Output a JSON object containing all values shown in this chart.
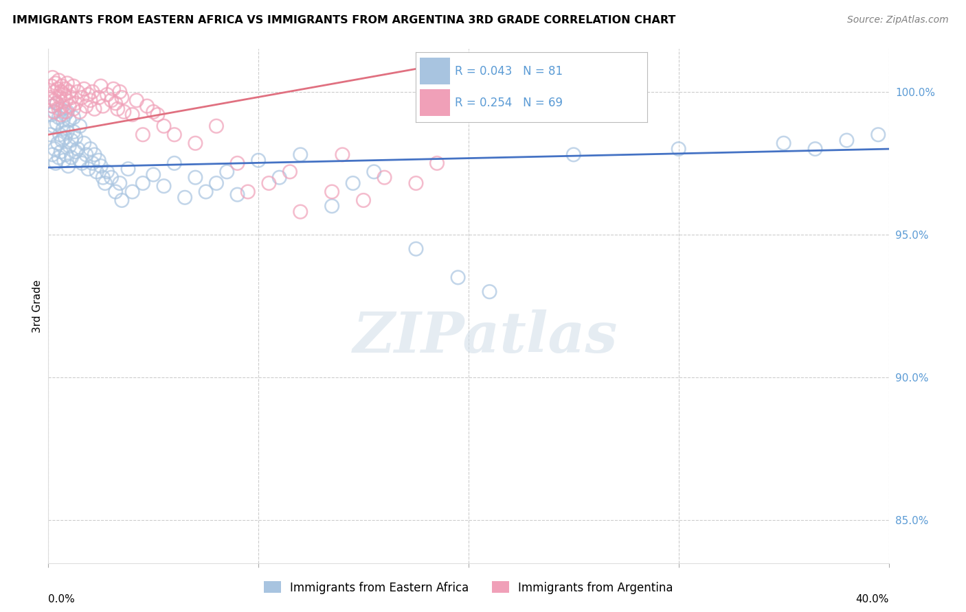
{
  "title": "IMMIGRANTS FROM EASTERN AFRICA VS IMMIGRANTS FROM ARGENTINA 3RD GRADE CORRELATION CHART",
  "source": "Source: ZipAtlas.com",
  "ylabel": "3rd Grade",
  "xlim": [
    0.0,
    40.0
  ],
  "ylim": [
    83.5,
    101.5
  ],
  "y_ticks": [
    85.0,
    90.0,
    95.0,
    100.0
  ],
  "y_tick_labels": [
    "85.0%",
    "90.0%",
    "95.0%",
    "100.0%"
  ],
  "blue_R": 0.043,
  "blue_N": 81,
  "pink_R": 0.254,
  "pink_N": 69,
  "blue_color": "#a8c4e0",
  "pink_color": "#f0a0b8",
  "blue_line_color": "#4472c4",
  "pink_line_color": "#e07080",
  "legend_label_blue": "Immigrants from Eastern Africa",
  "legend_label_pink": "Immigrants from Argentina",
  "watermark": "ZIPatlas",
  "background_color": "#ffffff",
  "grid_color": "#cccccc",
  "blue_scatter_x": [
    0.1,
    0.15,
    0.2,
    0.2,
    0.25,
    0.3,
    0.3,
    0.35,
    0.4,
    0.4,
    0.45,
    0.5,
    0.5,
    0.55,
    0.6,
    0.6,
    0.65,
    0.7,
    0.7,
    0.75,
    0.8,
    0.8,
    0.85,
    0.9,
    0.9,
    0.95,
    1.0,
    1.0,
    1.1,
    1.1,
    1.2,
    1.2,
    1.3,
    1.3,
    1.4,
    1.5,
    1.5,
    1.6,
    1.7,
    1.8,
    1.9,
    2.0,
    2.1,
    2.2,
    2.3,
    2.4,
    2.5,
    2.6,
    2.7,
    2.8,
    3.0,
    3.2,
    3.4,
    3.5,
    3.8,
    4.0,
    4.5,
    5.0,
    5.5,
    6.0,
    6.5,
    7.0,
    7.5,
    8.0,
    8.5,
    9.0,
    10.0,
    11.0,
    12.0,
    13.5,
    14.5,
    15.5,
    17.5,
    19.5,
    21.0,
    25.0,
    30.0,
    35.0,
    36.5,
    38.0,
    39.5
  ],
  "blue_scatter_y": [
    98.5,
    99.2,
    97.8,
    99.5,
    98.8,
    98.0,
    99.3,
    97.5,
    98.9,
    99.6,
    98.2,
    97.7,
    99.1,
    98.5,
    97.9,
    99.4,
    98.3,
    98.7,
    99.0,
    97.6,
    98.4,
    99.2,
    97.8,
    98.6,
    99.3,
    97.4,
    98.1,
    99.0,
    98.3,
    97.7,
    98.6,
    99.1,
    97.9,
    98.4,
    98.0,
    97.6,
    98.8,
    97.5,
    98.2,
    97.8,
    97.3,
    98.0,
    97.5,
    97.8,
    97.2,
    97.6,
    97.4,
    97.0,
    96.8,
    97.2,
    97.0,
    96.5,
    96.8,
    96.2,
    97.3,
    96.5,
    96.8,
    97.1,
    96.7,
    97.5,
    96.3,
    97.0,
    96.5,
    96.8,
    97.2,
    96.4,
    97.6,
    97.0,
    97.8,
    96.0,
    96.8,
    97.2,
    94.5,
    93.5,
    93.0,
    97.8,
    98.0,
    98.2,
    98.0,
    98.3,
    98.5
  ],
  "pink_scatter_x": [
    0.1,
    0.15,
    0.2,
    0.2,
    0.25,
    0.3,
    0.3,
    0.35,
    0.4,
    0.45,
    0.5,
    0.5,
    0.55,
    0.6,
    0.6,
    0.65,
    0.7,
    0.75,
    0.8,
    0.8,
    0.85,
    0.9,
    1.0,
    1.0,
    1.1,
    1.2,
    1.2,
    1.3,
    1.4,
    1.5,
    1.6,
    1.7,
    1.8,
    1.9,
    2.0,
    2.1,
    2.2,
    2.4,
    2.5,
    2.6,
    2.8,
    3.0,
    3.1,
    3.3,
    3.5,
    4.0,
    4.5,
    5.0,
    5.5,
    6.0,
    7.0,
    8.0,
    9.0,
    9.5,
    10.5,
    11.5,
    12.0,
    13.5,
    14.0,
    15.0,
    16.0,
    17.5,
    18.5,
    3.2,
    3.4,
    3.6,
    4.2,
    4.7,
    5.2
  ],
  "pink_scatter_y": [
    99.8,
    100.2,
    99.5,
    100.5,
    99.3,
    100.0,
    99.7,
    100.3,
    99.6,
    100.1,
    99.4,
    100.4,
    99.8,
    100.0,
    99.2,
    100.2,
    99.5,
    99.9,
    100.1,
    99.3,
    99.7,
    100.3,
    99.5,
    100.0,
    99.8,
    99.4,
    100.2,
    99.6,
    100.0,
    99.3,
    99.8,
    100.1,
    99.5,
    99.9,
    99.7,
    100.0,
    99.4,
    99.8,
    100.2,
    99.5,
    99.9,
    99.7,
    100.1,
    99.4,
    99.8,
    99.2,
    98.5,
    99.3,
    98.8,
    98.5,
    98.2,
    98.8,
    97.5,
    96.5,
    96.8,
    97.2,
    95.8,
    96.5,
    97.8,
    96.2,
    97.0,
    96.8,
    97.5,
    99.6,
    100.0,
    99.3,
    99.7,
    99.5,
    99.2
  ],
  "blue_line_x0": 0.0,
  "blue_line_x1": 40.0,
  "blue_line_y0": 97.35,
  "blue_line_y1": 98.0,
  "pink_line_x0": 0.0,
  "pink_line_x1": 19.0,
  "pink_line_y0": 98.5,
  "pink_line_y1": 101.0
}
